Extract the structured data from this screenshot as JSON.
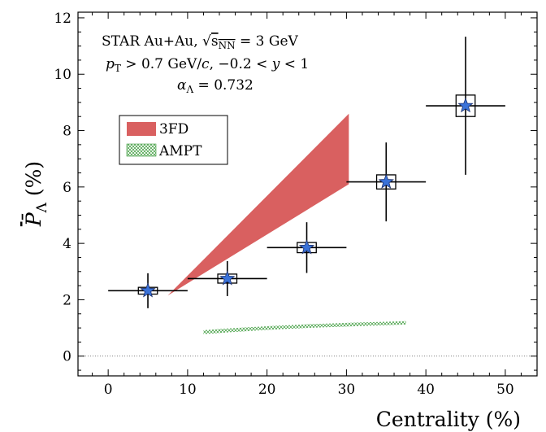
{
  "chart_data": {
    "type": "scatter",
    "title": "",
    "xlabel": "Centrality (%)",
    "ylabel": "P̄",
    "ylabel_subscript": "Λ",
    "ylabel_unit": "(%)",
    "xlim": [
      -3.8,
      54
    ],
    "ylim": [
      -0.7,
      12.2
    ],
    "x_ticks": [
      0,
      10,
      20,
      30,
      40,
      50
    ],
    "y_ticks": [
      0,
      2,
      4,
      6,
      8,
      10,
      12
    ],
    "x_minor_step": 2,
    "y_minor_step": 0.5,
    "grid": false,
    "legend_position": "upper-left",
    "annotations": [
      "STAR Au+Au, √s_NN = 3 GeV",
      "p_T > 0.7 GeV/c, −0.2 < y < 1",
      "α_Λ = 0.732"
    ],
    "data_series": {
      "name": "STAR Au+Au 3 GeV",
      "marker": "star",
      "color": "#3a72d8",
      "points": [
        {
          "x": 5,
          "y": 2.32,
          "x_err": 5,
          "y_err_low": 0.62,
          "y_err_high": 0.62,
          "sys_half_width": 1.2,
          "sys_half_height": 0.12
        },
        {
          "x": 15,
          "y": 2.75,
          "x_err": 5,
          "y_err_low": 0.62,
          "y_err_high": 0.62,
          "sys_half_width": 1.2,
          "sys_half_height": 0.16
        },
        {
          "x": 25,
          "y": 3.85,
          "x_err": 5,
          "y_err_low": 0.9,
          "y_err_high": 0.9,
          "sys_half_width": 1.2,
          "sys_half_height": 0.18
        },
        {
          "x": 35,
          "y": 6.18,
          "x_err": 5,
          "y_err_low": 1.4,
          "y_err_high": 1.4,
          "sys_half_width": 1.2,
          "sys_half_height": 0.25
        },
        {
          "x": 45,
          "y": 8.88,
          "x_err": 5,
          "y_err_low": 2.45,
          "y_err_high": 2.45,
          "sys_half_width": 1.2,
          "sys_half_height": 0.38
        }
      ]
    },
    "series": [
      {
        "name": "3FD",
        "style": "band",
        "color": "#d96060",
        "upper": [
          [
            7.5,
            2.15
          ],
          [
            30.3,
            8.6
          ]
        ],
        "lower": [
          [
            7.5,
            2.15
          ],
          [
            30.3,
            6.1
          ]
        ]
      },
      {
        "name": "AMPT",
        "style": "hatched-band",
        "color": "#3a9a3a",
        "upper": [
          [
            12,
            0.92
          ],
          [
            15,
            0.98
          ],
          [
            20,
            1.06
          ],
          [
            25,
            1.13
          ],
          [
            30,
            1.18
          ],
          [
            37.5,
            1.24
          ]
        ],
        "lower": [
          [
            12,
            0.78
          ],
          [
            15,
            0.84
          ],
          [
            20,
            0.93
          ],
          [
            25,
            1.0
          ],
          [
            30,
            1.05
          ],
          [
            37.5,
            1.12
          ]
        ]
      }
    ]
  }
}
